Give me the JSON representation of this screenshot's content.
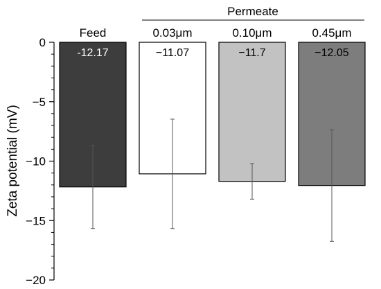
{
  "chart_data": {
    "type": "bar",
    "title": "",
    "xlabel": "",
    "ylabel": "Zeta potential (mV)",
    "ylim": [
      -20,
      0
    ],
    "yticks": [
      0,
      -5,
      -10,
      -15,
      -20
    ],
    "ytick_labels": [
      "0",
      "−5",
      "−10",
      "−15",
      "−20"
    ],
    "group_label": "Permeate",
    "categories": [
      "Feed",
      "0.03μm",
      "0.10μm",
      "0.45μm"
    ],
    "values": [
      -12.17,
      -11.07,
      -11.7,
      -12.05
    ],
    "value_labels": [
      "-12.17",
      "−11.07",
      "−11.7",
      "−12.05"
    ],
    "errors": [
      3.5,
      4.6,
      1.5,
      4.7
    ],
    "grid": false,
    "colors": {
      "bar_fills": [
        "#3d3d3d",
        "#ffffff",
        "#c2c2c2",
        "#7d7d7d"
      ],
      "value_label_colors": [
        "#ffffff",
        "#000000",
        "#000000",
        "#000000"
      ],
      "axis": "#000000",
      "error_bar": "#555555"
    }
  }
}
